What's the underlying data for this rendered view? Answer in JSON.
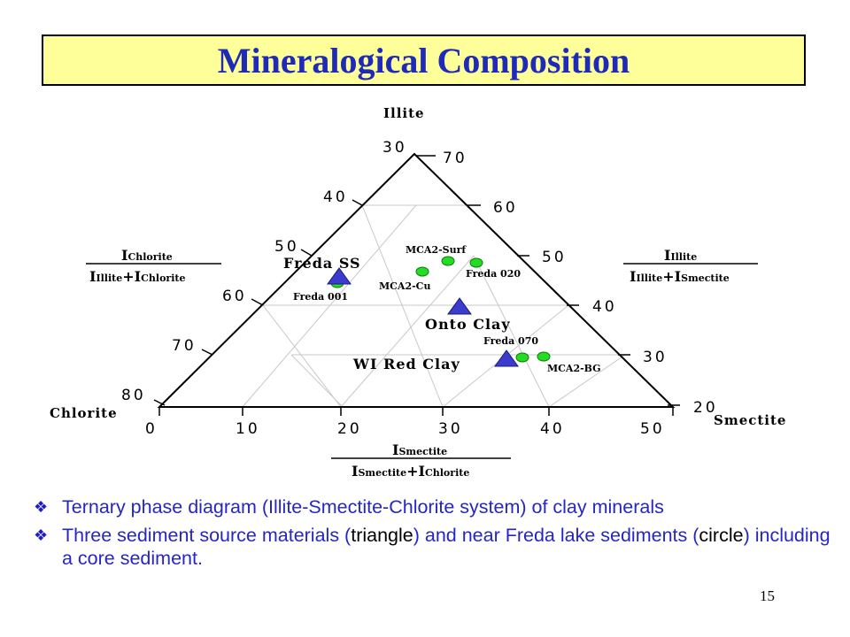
{
  "title": "Mineralogical Composition",
  "colors": {
    "title_bg": "#ffff99",
    "title_text": "#1f2bb8",
    "bullet_text": "#2626c4",
    "triangle_marker": "#3b3bcc",
    "circle_marker": "#22dd22"
  },
  "diagram": {
    "vertex_labels": {
      "top": "Illite",
      "left": "Chlorite",
      "right": "Smectite"
    },
    "left_scale": [
      "30",
      "40",
      "50",
      "60",
      "70",
      "80"
    ],
    "right_scale": [
      "70",
      "60",
      "50",
      "40",
      "30",
      "20"
    ],
    "bottom_scale": [
      "0",
      "10",
      "20",
      "30",
      "40",
      "50"
    ],
    "formulas": {
      "left": {
        "numerator": "I",
        "numerator_sub": "Chlorite",
        "denominator": [
          "I",
          "Illite",
          "+I",
          "Chlorite"
        ]
      },
      "right": {
        "numerator": "I",
        "numerator_sub": "Illite",
        "denominator": [
          "I",
          "Illite",
          "+I",
          "Smectite"
        ]
      },
      "bottom": {
        "numerator": "I",
        "numerator_sub": "Smectite",
        "denominator": [
          "I",
          "Smectite",
          "+I",
          "Chlorite"
        ]
      }
    },
    "source_materials": [
      {
        "label": "Freda SS",
        "marker": "triangle"
      },
      {
        "label": "Onto Clay",
        "marker": "triangle"
      },
      {
        "label": "WI Red Clay",
        "marker": "triangle"
      }
    ],
    "sediment_labels": [
      "MCA2-Surf",
      "Freda 020",
      "MCA2-Cu",
      "Freda 001",
      "Freda 070",
      "MCA2-BG"
    ]
  },
  "bullets": [
    {
      "text": "Ternary phase diagram (Illite-Smectite-Chlorite system) of clay minerals"
    },
    {
      "text_a": "Three sediment source materials (",
      "text_b": "triangle",
      "text_c": ") and near Freda lake sediments (",
      "text_d": "circle",
      "text_e": ") including a core sediment."
    }
  ],
  "page_number": "15"
}
